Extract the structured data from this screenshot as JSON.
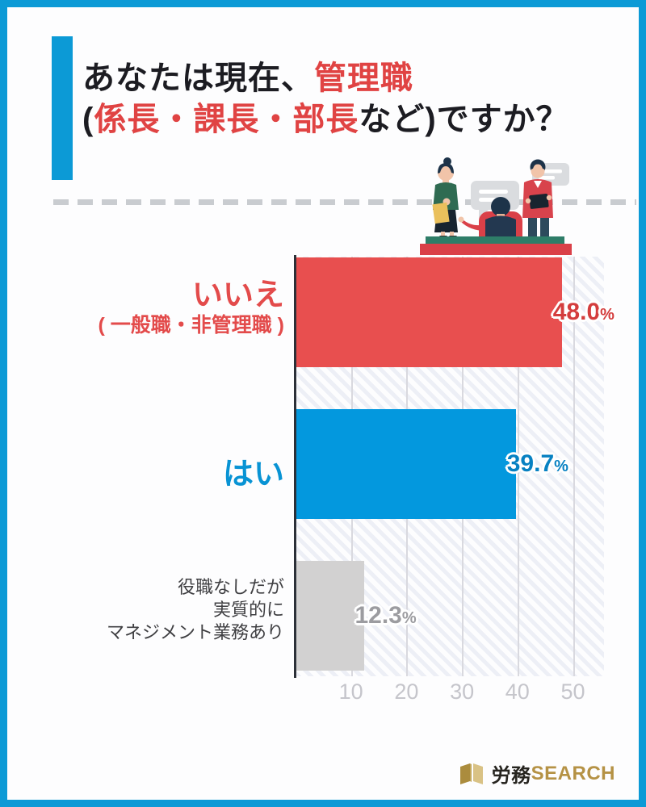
{
  "title": {
    "line1_black": "あなたは現在、",
    "line1_red": "管理職",
    "line2_black_open": "(",
    "line2_red": "係長・課長・部長",
    "line2_black_close": "など)ですか？"
  },
  "chart_data": {
    "type": "bar",
    "orientation": "horizontal",
    "categories": [
      "いいえ（一般職・非管理職）",
      "はい",
      "役職なしだが実質的にマネジメント業務あり"
    ],
    "category_lines": [
      [
        "いいえ",
        "( 一般職・非管理職 )"
      ],
      [
        "はい"
      ],
      [
        "役職なしだが",
        "実質的に",
        "マネジメント業務あり"
      ]
    ],
    "values": [
      48.0,
      39.7,
      12.3
    ],
    "value_labels": [
      [
        "48.0",
        "%"
      ],
      [
        "39.7",
        "%"
      ],
      [
        "12.3",
        "%"
      ]
    ],
    "bar_colors": [
      "#e84f4f",
      "#0398de",
      "#d2d1d1"
    ],
    "label_colors": [
      "#e34b4b",
      "#0893d4",
      "#3f3f42"
    ],
    "value_text_colors": [
      "#d43d3d",
      "#0781c2",
      "#9c9ca0"
    ],
    "xticks": [
      "10",
      "20",
      "30",
      "40",
      "50"
    ],
    "xlim": [
      0,
      55.6
    ],
    "grid": true,
    "legend": "none"
  },
  "icons": {
    "illustration": "people-meeting-illustration",
    "logo_icon": "open-book-icon"
  },
  "footer": {
    "logo_black": "労務",
    "logo_gold": "SEARCH"
  },
  "colors": {
    "frame_blue": "#0c9ad6",
    "accent_blue": "#0c9ad6",
    "title_red": "#e04343",
    "axis_dark": "#2c3038",
    "gridline": "#d9d9df",
    "tick_gray": "#c5c5cb",
    "logo_gold": "#b59245"
  }
}
